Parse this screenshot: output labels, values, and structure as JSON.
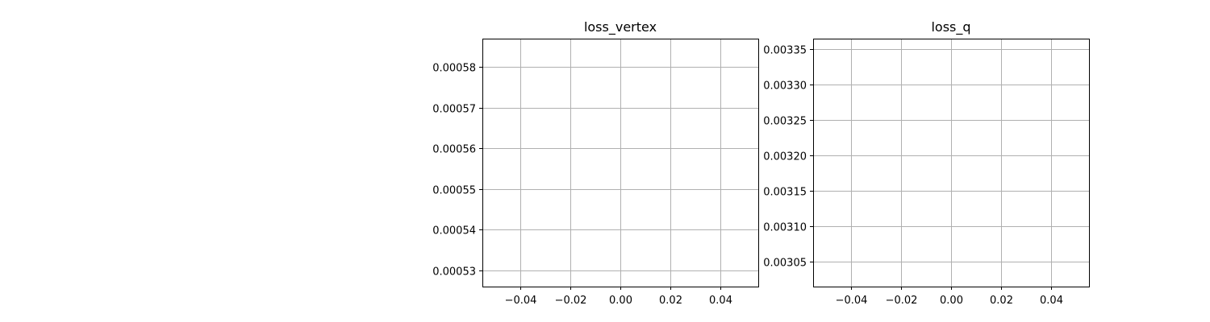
{
  "chart_data": [
    {
      "type": "line",
      "title": "loss_vertex",
      "xlabel": "",
      "ylabel": "",
      "xlim": [
        -0.055,
        0.055
      ],
      "ylim": [
        0.000526,
        0.000587
      ],
      "x_ticks": [
        -0.04,
        -0.02,
        0.0,
        0.02,
        0.04
      ],
      "x_tick_labels": [
        "−0.04",
        "−0.02",
        "0.00",
        "0.02",
        "0.04"
      ],
      "y_ticks": [
        0.00053,
        0.00054,
        0.00055,
        0.00056,
        0.00057,
        0.00058
      ],
      "y_tick_labels": [
        "0.00053",
        "0.00054",
        "0.00055",
        "0.00056",
        "0.00057",
        "0.00058"
      ],
      "grid": true,
      "series": []
    },
    {
      "type": "line",
      "title": "loss_q",
      "xlabel": "",
      "ylabel": "",
      "xlim": [
        -0.055,
        0.055
      ],
      "ylim": [
        0.003015,
        0.003365
      ],
      "x_ticks": [
        -0.04,
        -0.02,
        0.0,
        0.02,
        0.04
      ],
      "x_tick_labels": [
        "−0.04",
        "−0.02",
        "0.00",
        "0.02",
        "0.04"
      ],
      "y_ticks": [
        0.00305,
        0.0031,
        0.00315,
        0.0032,
        0.00325,
        0.0033,
        0.00335
      ],
      "y_tick_labels": [
        "0.00305",
        "0.00310",
        "0.00315",
        "0.00320",
        "0.00325",
        "0.00330",
        "0.00335"
      ],
      "grid": true,
      "series": []
    }
  ]
}
